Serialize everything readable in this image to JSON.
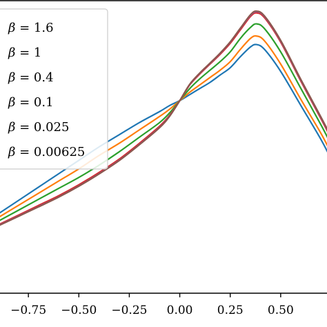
{
  "chart_data": {
    "type": "line",
    "xlabel": "",
    "ylabel": "",
    "xlim": [
      -1.0,
      0.75
    ],
    "ylim": [
      -0.15,
      1.05
    ],
    "x_ticks": [
      -0.75,
      -0.5,
      -0.25,
      0.0,
      0.25,
      0.5
    ],
    "x_tick_labels": [
      "−0.75",
      "−0.50",
      "−0.25",
      "0.00",
      "0.25",
      "0.50"
    ],
    "grid": false,
    "legend_position": "top-left",
    "x": [
      -1.0,
      -0.9,
      -0.8,
      -0.7,
      -0.6,
      -0.5,
      -0.4,
      -0.3,
      -0.2,
      -0.1,
      -0.05,
      0.0,
      0.05,
      0.1,
      0.15,
      0.2,
      0.25,
      0.3,
      0.35,
      0.38,
      0.42,
      0.5,
      0.6,
      0.7,
      0.75
    ],
    "series": [
      {
        "name": "β = 0.00625",
        "color": "#1f77b4",
        "values": [
          0.12,
          0.175,
          0.23,
          0.285,
          0.34,
          0.395,
          0.45,
          0.5,
          0.55,
          0.595,
          0.62,
          0.64,
          0.665,
          0.69,
          0.715,
          0.745,
          0.775,
          0.82,
          0.86,
          0.87,
          0.85,
          0.76,
          0.62,
          0.48,
          0.4
        ]
      },
      {
        "name": "β = 0.025",
        "color": "#ff7f0e",
        "values": [
          0.11,
          0.16,
          0.21,
          0.26,
          0.31,
          0.36,
          0.415,
          0.465,
          0.52,
          0.575,
          0.605,
          0.64,
          0.675,
          0.705,
          0.735,
          0.765,
          0.8,
          0.85,
          0.895,
          0.905,
          0.885,
          0.79,
          0.645,
          0.505,
          0.425
        ]
      },
      {
        "name": "β = 0.1",
        "color": "#2ca02c",
        "values": [
          0.1,
          0.145,
          0.19,
          0.235,
          0.28,
          0.325,
          0.375,
          0.43,
          0.49,
          0.55,
          0.59,
          0.64,
          0.69,
          0.73,
          0.765,
          0.8,
          0.84,
          0.895,
          0.94,
          0.955,
          0.935,
          0.84,
          0.69,
          0.54,
          0.46
        ]
      },
      {
        "name": "β = 0.4",
        "color": "#d62728",
        "values": [
          0.09,
          0.13,
          0.17,
          0.21,
          0.25,
          0.295,
          0.345,
          0.4,
          0.465,
          0.535,
          0.58,
          0.64,
          0.705,
          0.75,
          0.79,
          0.83,
          0.875,
          0.93,
          0.985,
          1.0,
          0.98,
          0.88,
          0.72,
          0.565,
          0.485
        ]
      },
      {
        "name": "β = 1",
        "color": "#9467bd",
        "values": [
          0.088,
          0.127,
          0.166,
          0.205,
          0.245,
          0.29,
          0.34,
          0.395,
          0.46,
          0.53,
          0.577,
          0.64,
          0.707,
          0.753,
          0.793,
          0.834,
          0.88,
          0.936,
          0.99,
          1.005,
          0.985,
          0.885,
          0.725,
          0.57,
          0.49
        ]
      },
      {
        "name": "β = 1.6",
        "color": "#8c564b",
        "values": [
          0.087,
          0.126,
          0.165,
          0.204,
          0.244,
          0.289,
          0.339,
          0.394,
          0.459,
          0.529,
          0.576,
          0.64,
          0.708,
          0.754,
          0.794,
          0.835,
          0.881,
          0.937,
          0.992,
          1.007,
          0.987,
          0.887,
          0.727,
          0.572,
          0.492
        ]
      }
    ],
    "legend_entries": [
      {
        "lhs": "β",
        "rhs": " = 1.6"
      },
      {
        "lhs": "β",
        "rhs": " = 1"
      },
      {
        "lhs": "β",
        "rhs": " = 0.4"
      },
      {
        "lhs": "β",
        "rhs": " = 0.1"
      },
      {
        "lhs": "β",
        "rhs": " = 0.025"
      },
      {
        "lhs": "β",
        "rhs": " = 0.00625"
      }
    ]
  }
}
